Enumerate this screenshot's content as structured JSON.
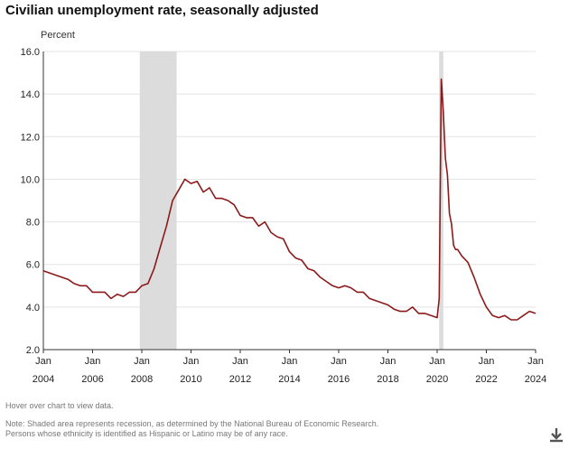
{
  "title": "Civilian unemployment rate, seasonally adjusted",
  "hover_hint": "Hover over chart to view data.",
  "note_line1": "Note: Shaded area represents recession, as determined by the National Bureau of Economic Research.",
  "note_line2": "Persons whose ethnicity is identified as Hispanic or Latino may be of any race.",
  "download_icon": "download-icon",
  "colors": {
    "line": "#8b1a1a",
    "recession": "#dcdcdc",
    "grid": "#e3e3e3",
    "axis": "#333333"
  },
  "chart_data": {
    "type": "line",
    "title": "Civilian unemployment rate, seasonally adjusted",
    "ylabel": "Percent",
    "xlabel": "",
    "ylim": [
      2.0,
      16.0
    ],
    "xlim": [
      2004.0,
      2024.0
    ],
    "yticks": [
      "2.0",
      "4.0",
      "6.0",
      "8.0",
      "10.0",
      "12.0",
      "14.0",
      "16.0"
    ],
    "xticks": [
      {
        "month": "Jan",
        "year": "2004",
        "x": 2004
      },
      {
        "month": "Jan",
        "year": "2006",
        "x": 2006
      },
      {
        "month": "Jan",
        "year": "2008",
        "x": 2008
      },
      {
        "month": "Jan",
        "year": "2010",
        "x": 2010
      },
      {
        "month": "Jan",
        "year": "2012",
        "x": 2012
      },
      {
        "month": "Jan",
        "year": "2014",
        "x": 2014
      },
      {
        "month": "Jan",
        "year": "2016",
        "x": 2016
      },
      {
        "month": "Jan",
        "year": "2018",
        "x": 2018
      },
      {
        "month": "Jan",
        "year": "2020",
        "x": 2020
      },
      {
        "month": "Jan",
        "year": "2022",
        "x": 2022
      },
      {
        "month": "Jan",
        "year": "2024",
        "x": 2024
      }
    ],
    "recessions": [
      [
        2007.917,
        2009.417
      ],
      [
        2020.083,
        2020.25
      ]
    ],
    "grid": true,
    "series": [
      {
        "name": "Civilian unemployment rate",
        "x": [
          2004.0,
          2004.25,
          2004.5,
          2004.75,
          2005.0,
          2005.25,
          2005.5,
          2005.75,
          2006.0,
          2006.25,
          2006.5,
          2006.75,
          2007.0,
          2007.25,
          2007.5,
          2007.75,
          2008.0,
          2008.25,
          2008.5,
          2008.75,
          2009.0,
          2009.25,
          2009.5,
          2009.75,
          2010.0,
          2010.25,
          2010.5,
          2010.75,
          2011.0,
          2011.25,
          2011.5,
          2011.75,
          2012.0,
          2012.25,
          2012.5,
          2012.75,
          2013.0,
          2013.25,
          2013.5,
          2013.75,
          2014.0,
          2014.25,
          2014.5,
          2014.75,
          2015.0,
          2015.25,
          2015.5,
          2015.75,
          2016.0,
          2016.25,
          2016.5,
          2016.75,
          2017.0,
          2017.25,
          2017.5,
          2017.75,
          2018.0,
          2018.25,
          2018.5,
          2018.75,
          2019.0,
          2019.25,
          2019.5,
          2019.75,
          2020.0,
          2020.083,
          2020.167,
          2020.25,
          2020.333,
          2020.417,
          2020.5,
          2020.583,
          2020.667,
          2020.75,
          2020.833,
          2021.0,
          2021.25,
          2021.5,
          2021.75,
          2022.0,
          2022.25,
          2022.5,
          2022.75,
          2023.0,
          2023.25,
          2023.5,
          2023.75,
          2024.0
        ],
        "y": [
          5.7,
          5.6,
          5.5,
          5.4,
          5.3,
          5.1,
          5.0,
          5.0,
          4.7,
          4.7,
          4.7,
          4.4,
          4.6,
          4.5,
          4.7,
          4.7,
          5.0,
          5.1,
          5.8,
          6.8,
          7.8,
          9.0,
          9.5,
          10.0,
          9.8,
          9.9,
          9.4,
          9.6,
          9.1,
          9.1,
          9.0,
          8.8,
          8.3,
          8.2,
          8.2,
          7.8,
          8.0,
          7.5,
          7.3,
          7.2,
          6.6,
          6.3,
          6.2,
          5.8,
          5.7,
          5.4,
          5.2,
          5.0,
          4.9,
          5.0,
          4.9,
          4.7,
          4.7,
          4.4,
          4.3,
          4.2,
          4.1,
          3.9,
          3.8,
          3.8,
          4.0,
          3.7,
          3.7,
          3.6,
          3.5,
          4.4,
          14.7,
          13.2,
          11.0,
          10.2,
          8.4,
          7.9,
          6.9,
          6.7,
          6.7,
          6.4,
          6.1,
          5.4,
          4.6,
          4.0,
          3.6,
          3.5,
          3.6,
          3.4,
          3.4,
          3.6,
          3.8,
          3.7
        ]
      }
    ]
  }
}
